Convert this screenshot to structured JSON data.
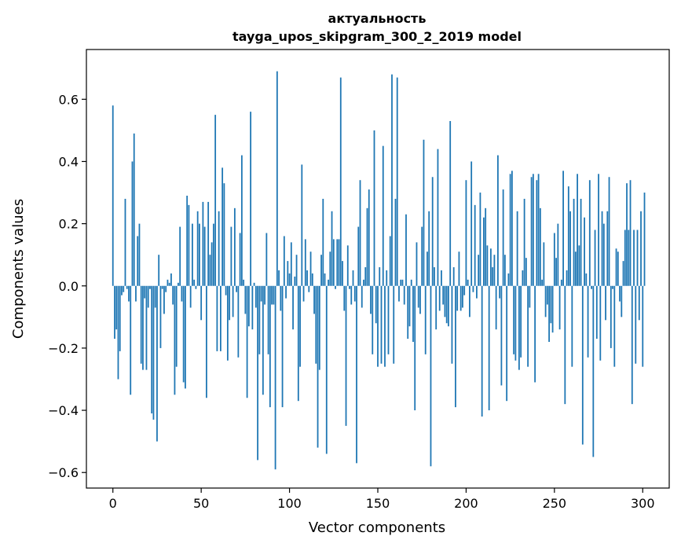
{
  "chart_data": {
    "type": "bar",
    "title_lines": [
      "актуальность",
      "tayga_upos_skipgram_300_2_2019 model"
    ],
    "xlabel": "Vector components",
    "ylabel": "Components values",
    "xlim": [
      -15,
      315
    ],
    "ylim": [
      -0.65,
      0.76
    ],
    "xticks": [
      0,
      50,
      100,
      150,
      200,
      250,
      300
    ],
    "yticks": [
      -0.6,
      -0.4,
      -0.2,
      0.0,
      0.2,
      0.4,
      0.6
    ],
    "ytick_labels": [
      "−0.6",
      "−0.4",
      "−0.2",
      "0.0",
      "0.2",
      "0.4",
      "0.6"
    ],
    "xtick_labels": [
      "0",
      "50",
      "100",
      "150",
      "200",
      "250",
      "300"
    ],
    "bar_color": "#1f77b4",
    "grid": false,
    "values": [
      0.58,
      -0.17,
      -0.14,
      -0.3,
      -0.21,
      -0.03,
      -0.02,
      0.28,
      -0.01,
      -0.05,
      -0.35,
      0.4,
      0.49,
      -0.05,
      0.16,
      0.2,
      -0.25,
      -0.27,
      -0.04,
      -0.27,
      -0.07,
      -0.01,
      -0.41,
      -0.43,
      -0.07,
      -0.5,
      0.1,
      -0.2,
      -0.01,
      -0.09,
      -0.02,
      0.02,
      0.01,
      0.04,
      -0.06,
      -0.35,
      -0.26,
      0.01,
      0.19,
      -0.05,
      -0.31,
      -0.33,
      0.29,
      0.26,
      -0.07,
      0.2,
      0.02,
      -0.01,
      0.24,
      0.2,
      -0.11,
      0.27,
      0.19,
      -0.36,
      0.27,
      0.1,
      0.14,
      0.2,
      0.55,
      -0.21,
      0.24,
      -0.21,
      0.38,
      0.33,
      -0.03,
      -0.24,
      -0.11,
      0.19,
      -0.1,
      0.25,
      -0.02,
      -0.23,
      0.17,
      0.42,
      0.02,
      -0.09,
      -0.36,
      -0.13,
      0.56,
      -0.14,
      0.01,
      -0.07,
      -0.56,
      -0.22,
      -0.05,
      -0.35,
      -0.06,
      0.17,
      -0.22,
      -0.39,
      -0.06,
      -0.06,
      -0.59,
      0.69,
      0.05,
      -0.08,
      -0.39,
      0.16,
      -0.04,
      0.08,
      0.04,
      0.14,
      -0.14,
      0.03,
      0.1,
      -0.37,
      -0.26,
      0.39,
      -0.05,
      0.15,
      0.05,
      -0.02,
      0.11,
      0.04,
      -0.09,
      -0.25,
      -0.52,
      -0.27,
      0.1,
      0.28,
      0.04,
      -0.54,
      0.02,
      0.11,
      0.24,
      0.15,
      -0.01,
      0.15,
      0.15,
      0.67,
      0.08,
      -0.08,
      -0.45,
      0.13,
      -0.01,
      -0.06,
      0.05,
      -0.05,
      -0.57,
      0.19,
      0.34,
      -0.07,
      0.02,
      0.06,
      0.25,
      0.31,
      -0.09,
      -0.22,
      0.5,
      -0.12,
      -0.26,
      0.06,
      -0.25,
      0.45,
      -0.26,
      0.05,
      -0.22,
      0.16,
      0.68,
      -0.25,
      0.28,
      0.67,
      -0.05,
      0.02,
      0.02,
      -0.06,
      0.23,
      -0.17,
      -0.13,
      0.02,
      -0.18,
      -0.4,
      0.14,
      -0.07,
      -0.09,
      0.19,
      0.47,
      -0.22,
      0.11,
      0.24,
      -0.58,
      0.35,
      0.06,
      -0.14,
      0.44,
      -0.08,
      0.05,
      -0.06,
      -0.1,
      -0.12,
      -0.13,
      0.53,
      -0.25,
      0.06,
      -0.39,
      -0.08,
      0.11,
      -0.08,
      -0.07,
      -0.03,
      0.34,
      0.02,
      -0.1,
      0.4,
      -0.02,
      0.26,
      -0.04,
      0.1,
      0.3,
      -0.42,
      0.22,
      0.25,
      0.13,
      -0.4,
      0.12,
      0.06,
      0.1,
      -0.14,
      0.42,
      -0.04,
      -0.32,
      0.31,
      0.1,
      -0.37,
      0.04,
      0.36,
      0.37,
      -0.22,
      -0.24,
      0.24,
      -0.27,
      -0.23,
      0.05,
      0.28,
      0.09,
      -0.26,
      -0.07,
      0.35,
      0.36,
      -0.31,
      0.34,
      0.36,
      0.25,
      0.02,
      0.14,
      -0.1,
      -0.06,
      -0.18,
      -0.12,
      -0.15,
      0.17,
      0.09,
      0.2,
      -0.14,
      0.02,
      0.37,
      -0.38,
      0.05,
      0.32,
      0.24,
      -0.26,
      0.28,
      0.11,
      0.36,
      0.13,
      0.28,
      -0.51,
      0.22,
      0.04,
      -0.23,
      0.34,
      -0.01,
      -0.55,
      0.18,
      -0.17,
      0.36,
      -0.24,
      0.24,
      0.2,
      -0.11,
      0.24,
      0.35,
      -0.2,
      -0.01,
      -0.26,
      0.12,
      0.11,
      -0.05,
      -0.1,
      0.08,
      0.18,
      0.33,
      0.18,
      0.34,
      -0.38,
      0.18,
      -0.25,
      0.18,
      -0.11,
      0.24,
      -0.26,
      0.3
    ]
  }
}
